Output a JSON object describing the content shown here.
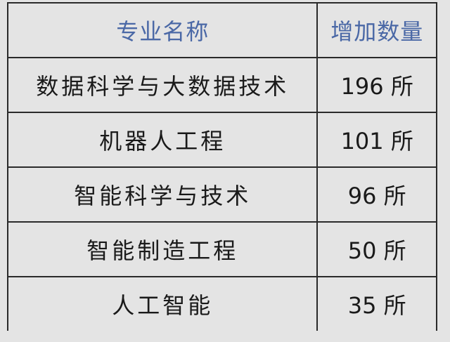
{
  "table": {
    "headers": [
      "专业名称",
      "增加数量"
    ],
    "rows": [
      {
        "name": "数据科学与大数据技术",
        "count": "196 所"
      },
      {
        "name": "机器人工程",
        "count": "101 所"
      },
      {
        "name": "智能科学与技术",
        "count": "96 所"
      },
      {
        "name": "智能制造工程",
        "count": "50 所"
      },
      {
        "name": "人工智能",
        "count": "35 所"
      }
    ]
  },
  "colors": {
    "header_text": "#4a68a6",
    "background": "#e4e4e4",
    "border": "#2a2a2a"
  }
}
